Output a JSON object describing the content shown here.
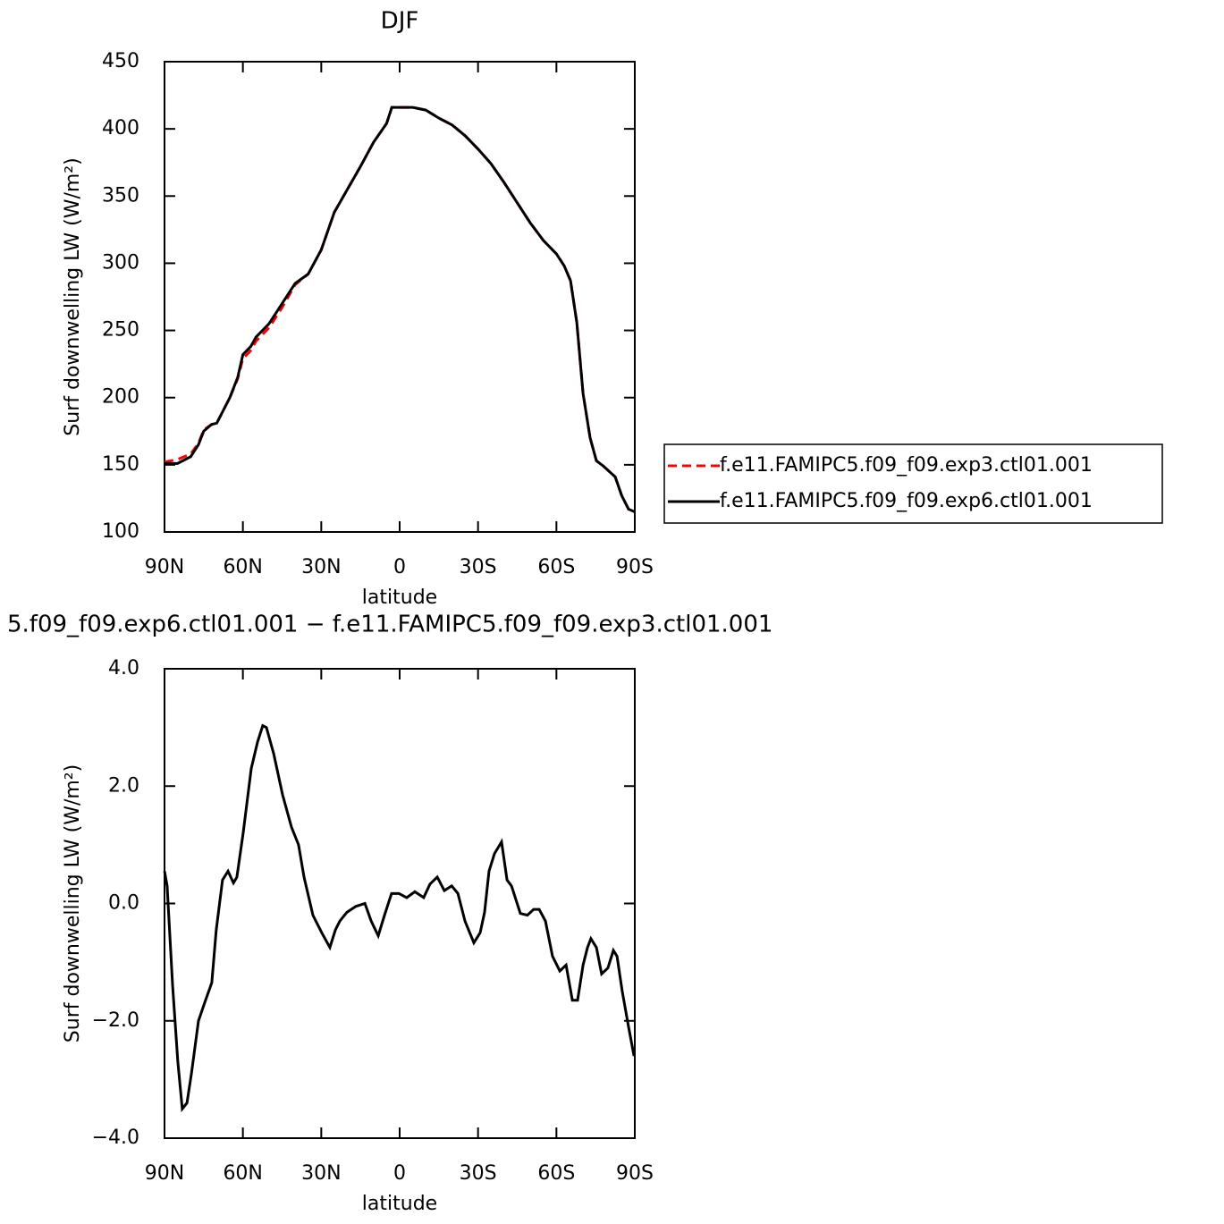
{
  "chart_data": [
    {
      "type": "line",
      "title": "DJF",
      "xlabel": "latitude",
      "ylabel": "Surf downwelling LW (W/m²)",
      "x": [
        90,
        85,
        80,
        77,
        75,
        72,
        70,
        65,
        62,
        60,
        57,
        55,
        50,
        45,
        40,
        35,
        30,
        25,
        20,
        15,
        10,
        5,
        3,
        0,
        -5,
        -10,
        -15,
        -20,
        -25,
        -30,
        -35,
        -40,
        -45,
        -50,
        -55,
        -60,
        -63,
        -65.4,
        -67.8,
        -70.2,
        -72.9,
        -75.3,
        -78,
        -82.5,
        -85,
        -87.6,
        -90
      ],
      "series": [
        {
          "name": "f.e11.FAMIPC5.f09_f09.exp3.ctl01.001",
          "color": "#ff0000",
          "linestyle": "dashed",
          "values": [
            152,
            154,
            158,
            166,
            176,
            180,
            181,
            200,
            214,
            229,
            235,
            242,
            252,
            267,
            284,
            292,
            310,
            338,
            355,
            372,
            390,
            404,
            416,
            416,
            416,
            414,
            408,
            403,
            395,
            385,
            374,
            360,
            345,
            330,
            317,
            307,
            298,
            287,
            256,
            203,
            170,
            153,
            149,
            141,
            127,
            117,
            115
          ]
        },
        {
          "name": "f.e11.FAMIPC5.f09_f09.exp6.ctl01.001",
          "color": "#000000",
          "linestyle": "solid",
          "values": [
            151,
            151,
            156,
            165,
            175,
            180,
            181,
            200,
            215,
            232,
            238,
            245,
            255,
            270,
            285,
            292,
            310,
            338,
            355,
            372,
            390,
            404,
            416,
            416,
            416,
            414,
            408,
            403,
            395,
            385,
            374,
            360,
            345,
            330,
            317,
            307,
            298,
            287,
            256,
            203,
            170,
            153,
            149,
            141,
            127,
            117,
            115
          ]
        }
      ],
      "xlim": [
        90,
        -90
      ],
      "xticks": [
        {
          "value": 90,
          "label": "90N"
        },
        {
          "value": 60,
          "label": "60N"
        },
        {
          "value": 30,
          "label": "30N"
        },
        0,
        {
          "value": -30,
          "label": "30S"
        },
        {
          "value": -60,
          "label": "60S"
        },
        {
          "value": -90,
          "label": "90S"
        }
      ],
      "ylim": [
        100,
        450
      ],
      "yticks": [
        100,
        150,
        200,
        250,
        300,
        350,
        400,
        450
      ],
      "legend": "right"
    },
    {
      "type": "line",
      "title": "5.f09_f09.exp6.ctl01.001 − f.e11.FAMIPC5.f09_f09.exp3.ctl01.001",
      "xlabel": "latitude",
      "ylabel": "Surf downwelling LW (W/m²)",
      "x": [
        90,
        89,
        86.9,
        84.9,
        83.2,
        81.4,
        79.7,
        77,
        74.3,
        71.9,
        70.2,
        67.8,
        65.7,
        63.6,
        62.3,
        59.9,
        56.8,
        54.4,
        52.4,
        51,
        48.2,
        44.8,
        41.4,
        38.7,
        36.6,
        33.2,
        29.8,
        26.7,
        24.6,
        22.9,
        20.2,
        16.8,
        13.3,
        10.9,
        8.2,
        5.8,
        3.1,
        0.3,
        -2.7,
        -5.8,
        -9.2,
        -11.6,
        -14.4,
        -17.1,
        -19.9,
        -22.3,
        -25,
        -28.4,
        -30.8,
        -32.5,
        -34.2,
        -36.3,
        -39,
        -41.1,
        -42.8,
        -46.2,
        -48.9,
        -51.3,
        -53.4,
        -55.8,
        -58.5,
        -61.3,
        -63.7,
        -66.1,
        -68.1,
        -70.2,
        -71.9,
        -73.2,
        -75.3,
        -77.3,
        -79.7,
        -81.8,
        -83.2,
        -85.2,
        -87.6,
        -89.7
      ],
      "color": "#000000",
      "values": [
        0.55,
        0.3,
        -1.4,
        -2.7,
        -3.5,
        -3.4,
        -2.9,
        -2.0,
        -1.65,
        -1.35,
        -0.45,
        0.4,
        0.55,
        0.35,
        0.45,
        1.2,
        2.3,
        2.75,
        3.03,
        3.0,
        2.55,
        1.85,
        1.3,
        1.0,
        0.45,
        -0.2,
        -0.5,
        -0.75,
        -0.45,
        -0.3,
        -0.15,
        -0.05,
        0.0,
        -0.3,
        -0.55,
        -0.2,
        0.17,
        0.17,
        0.1,
        0.2,
        0.1,
        0.33,
        0.45,
        0.22,
        0.3,
        0.17,
        -0.3,
        -0.67,
        -0.5,
        -0.15,
        0.55,
        0.85,
        1.05,
        0.4,
        0.3,
        -0.17,
        -0.2,
        -0.1,
        -0.1,
        -0.3,
        -0.9,
        -1.15,
        -1.05,
        -1.65,
        -1.65,
        -1.05,
        -0.75,
        -0.6,
        -0.75,
        -1.2,
        -1.1,
        -0.8,
        -0.9,
        -1.5,
        -2.1,
        -2.6
      ],
      "xlim": [
        90,
        -90
      ],
      "xticks": [
        {
          "value": 90,
          "label": "90N"
        },
        {
          "value": 60,
          "label": "60N"
        },
        {
          "value": 30,
          "label": "30N"
        },
        0,
        {
          "value": -30,
          "label": "30S"
        },
        {
          "value": -60,
          "label": "60S"
        },
        {
          "value": -90,
          "label": "90S"
        }
      ],
      "ylim": [
        -4,
        4
      ],
      "yticks": [
        {
          "value": -4,
          "label": "−4.0"
        },
        {
          "value": -2,
          "label": "−2.0"
        },
        {
          "value": 0,
          "label": "0.0"
        },
        {
          "value": 2,
          "label": "2.0"
        },
        {
          "value": 4,
          "label": "4.0"
        }
      ]
    }
  ]
}
